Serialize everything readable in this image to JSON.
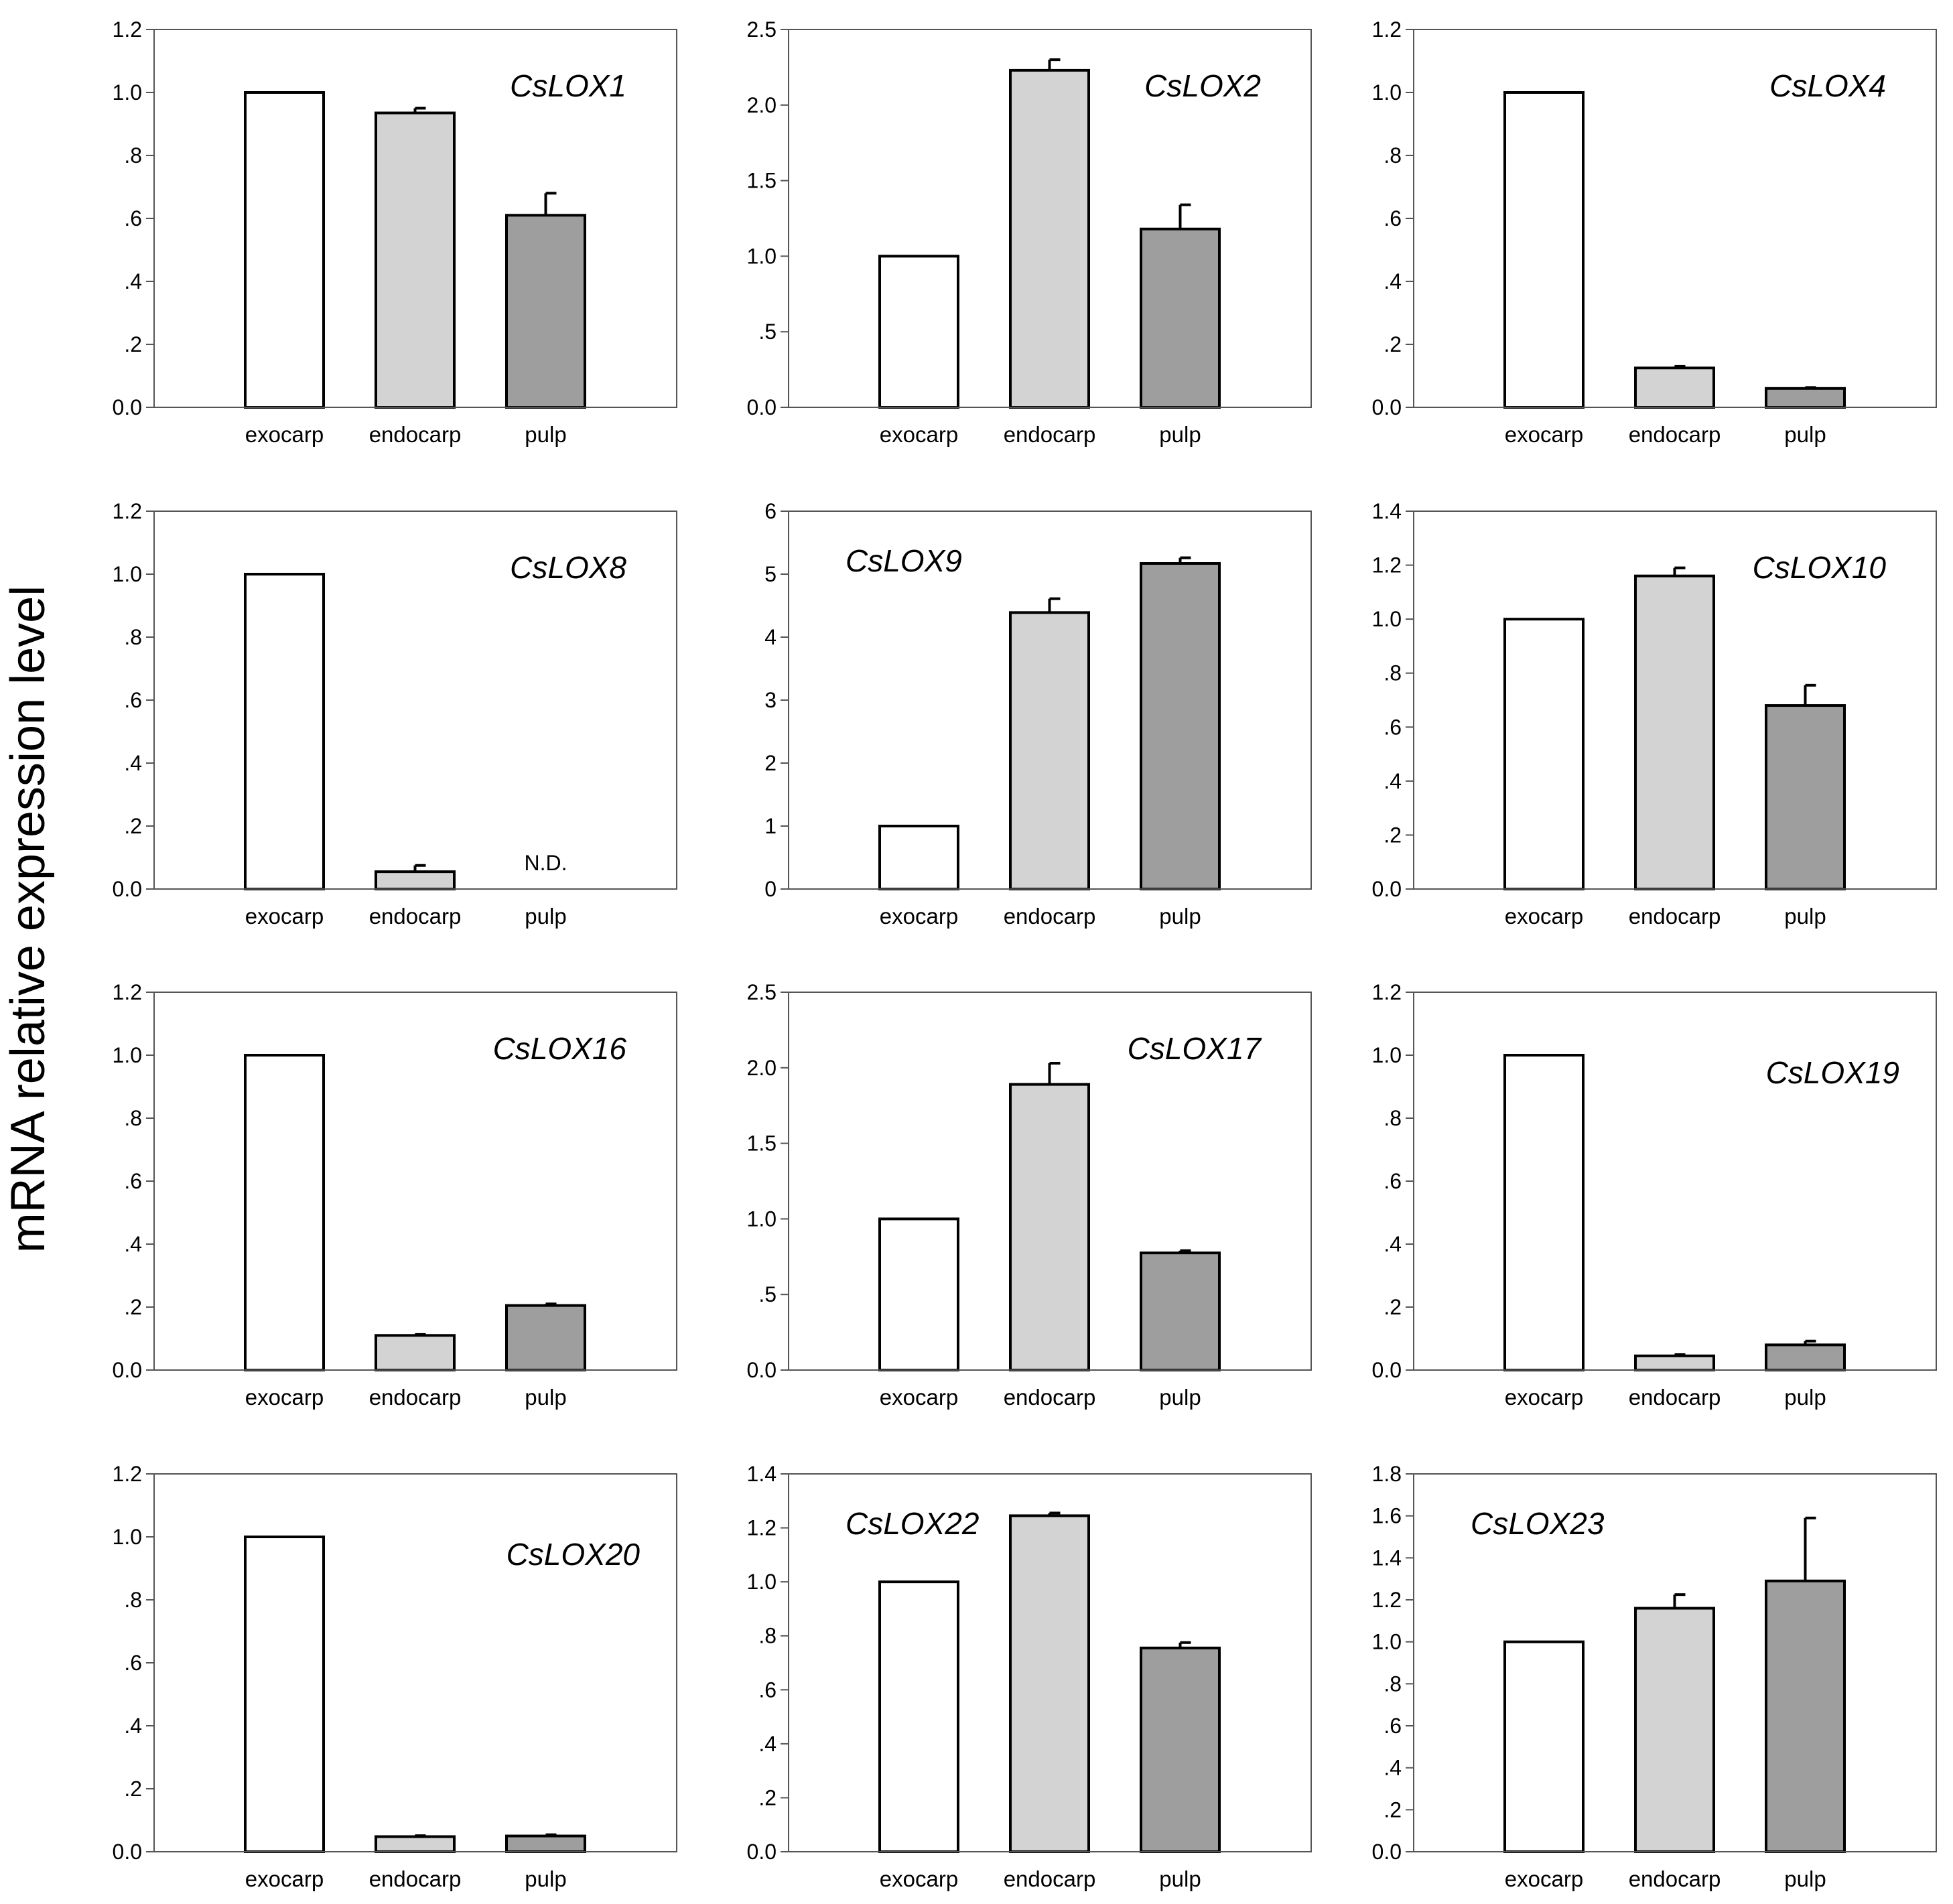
{
  "figure": {
    "ylabel": "mRNA relative expression level",
    "categories": [
      "exocarp",
      "endocarp",
      "pulp"
    ],
    "colors": {
      "exocarp": "#ffffff",
      "endocarp": "#d3d3d3",
      "pulp": "#9e9e9e",
      "stroke": "#000000"
    }
  },
  "chart_data": [
    {
      "type": "bar",
      "title": "CsLOX1",
      "categories": [
        "exocarp",
        "endocarp",
        "pulp"
      ],
      "values": [
        1.0,
        0.935,
        0.61
      ],
      "errors": [
        0,
        0.015,
        0.07
      ],
      "ylim": [
        0,
        1.2
      ],
      "yticks": [
        0,
        0.2,
        0.4,
        0.6,
        0.8,
        1.0,
        1.2
      ],
      "ytick_labels": [
        "0.0",
        ".2",
        ".4",
        ".6",
        ".8",
        "1.0",
        "1.2"
      ],
      "title_position": "top-right",
      "nd": [
        false,
        false,
        false
      ]
    },
    {
      "type": "bar",
      "title": "CsLOX2",
      "categories": [
        "exocarp",
        "endocarp",
        "pulp"
      ],
      "values": [
        1.0,
        2.23,
        1.18
      ],
      "errors": [
        0,
        0.07,
        0.16
      ],
      "ylim": [
        0,
        2.5
      ],
      "yticks": [
        0,
        0.5,
        1.0,
        1.5,
        2.0,
        2.5
      ],
      "ytick_labels": [
        "0.0",
        ".5",
        "1.0",
        "1.5",
        "2.0",
        "2.5"
      ],
      "title_position": "top-right",
      "nd": [
        false,
        false,
        false
      ]
    },
    {
      "type": "bar",
      "title": "CsLOX4",
      "categories": [
        "exocarp",
        "endocarp",
        "pulp"
      ],
      "values": [
        1.0,
        0.125,
        0.06
      ],
      "errors": [
        0,
        0.005,
        0.003
      ],
      "ylim": [
        0,
        1.2
      ],
      "yticks": [
        0,
        0.2,
        0.4,
        0.6,
        0.8,
        1.0,
        1.2
      ],
      "ytick_labels": [
        "0.0",
        ".2",
        ".4",
        ".6",
        ".8",
        "1.0",
        "1.2"
      ],
      "title_position": "top-right",
      "nd": [
        false,
        false,
        false
      ]
    },
    {
      "type": "bar",
      "title": "CsLOX8",
      "categories": [
        "exocarp",
        "endocarp",
        "pulp"
      ],
      "values": [
        1.0,
        0.055,
        0
      ],
      "errors": [
        0,
        0.02,
        0
      ],
      "ylim": [
        0,
        1.2
      ],
      "yticks": [
        0,
        0.2,
        0.4,
        0.6,
        0.8,
        1.0,
        1.2
      ],
      "ytick_labels": [
        "0.0",
        ".2",
        ".4",
        ".6",
        ".8",
        "1.0",
        "1.2"
      ],
      "title_position": "top-right",
      "nd": [
        false,
        false,
        true
      ],
      "annotation": "N.D."
    },
    {
      "type": "bar",
      "title": "CsLOX9",
      "categories": [
        "exocarp",
        "endocarp",
        "pulp"
      ],
      "values": [
        1.0,
        4.39,
        5.17
      ],
      "errors": [
        0,
        0.22,
        0.09
      ],
      "ylim": [
        0,
        6
      ],
      "yticks": [
        0,
        1,
        2,
        3,
        4,
        5,
        6
      ],
      "ytick_labels": [
        "0",
        "1",
        "2",
        "3",
        "4",
        "5",
        "6"
      ],
      "title_position": "top-left",
      "nd": [
        false,
        false,
        false
      ]
    },
    {
      "type": "bar",
      "title": "CsLOX10",
      "categories": [
        "exocarp",
        "endocarp",
        "pulp"
      ],
      "values": [
        1.0,
        1.16,
        0.68
      ],
      "errors": [
        0,
        0.03,
        0.075
      ],
      "ylim": [
        0,
        1.4
      ],
      "yticks": [
        0,
        0.2,
        0.4,
        0.6,
        0.8,
        1.0,
        1.2,
        1.4
      ],
      "ytick_labels": [
        "0.0",
        ".2",
        ".4",
        ".6",
        ".8",
        "1.0",
        "1.2",
        "1.4"
      ],
      "title_position": "top-right",
      "nd": [
        false,
        false,
        false
      ]
    },
    {
      "type": "bar",
      "title": "CsLOX16",
      "categories": [
        "exocarp",
        "endocarp",
        "pulp"
      ],
      "values": [
        1.0,
        0.11,
        0.205
      ],
      "errors": [
        0,
        0.003,
        0.005
      ],
      "ylim": [
        0,
        1.2
      ],
      "yticks": [
        0,
        0.2,
        0.4,
        0.6,
        0.8,
        1.0,
        1.2
      ],
      "ytick_labels": [
        "0.0",
        ".2",
        ".4",
        ".6",
        ".8",
        "1.0",
        "1.2"
      ],
      "title_position": "top-right",
      "nd": [
        false,
        false,
        false
      ]
    },
    {
      "type": "bar",
      "title": "CsLOX17",
      "categories": [
        "exocarp",
        "endocarp",
        "pulp"
      ],
      "values": [
        1.0,
        1.89,
        0.775
      ],
      "errors": [
        0,
        0.14,
        0.015
      ],
      "ylim": [
        0,
        2.5
      ],
      "yticks": [
        0,
        0.5,
        1.0,
        1.5,
        2.0,
        2.5
      ],
      "ytick_labels": [
        "0.0",
        ".5",
        "1.0",
        "1.5",
        "2.0",
        "2.5"
      ],
      "title_position": "top-right",
      "nd": [
        false,
        false,
        false
      ]
    },
    {
      "type": "bar",
      "title": "CsLOX19",
      "categories": [
        "exocarp",
        "endocarp",
        "pulp"
      ],
      "values": [
        1.0,
        0.045,
        0.08
      ],
      "errors": [
        0,
        0.004,
        0.012
      ],
      "ylim": [
        0,
        1.2
      ],
      "yticks": [
        0,
        0.2,
        0.4,
        0.6,
        0.8,
        1.0,
        1.2
      ],
      "ytick_labels": [
        "0.0",
        ".2",
        ".4",
        ".6",
        ".8",
        "1.0",
        "1.2"
      ],
      "title_position": "right-upper",
      "nd": [
        false,
        false,
        false
      ]
    },
    {
      "type": "bar",
      "title": "CsLOX20",
      "categories": [
        "exocarp",
        "endocarp",
        "pulp"
      ],
      "values": [
        1.0,
        0.048,
        0.05
      ],
      "errors": [
        0,
        0.003,
        0.004
      ],
      "ylim": [
        0,
        1.2
      ],
      "yticks": [
        0,
        0.2,
        0.4,
        0.6,
        0.8,
        1.0,
        1.2
      ],
      "ytick_labels": [
        "0.0",
        ".2",
        ".4",
        ".6",
        ".8",
        "1.0",
        "1.2"
      ],
      "title_position": "right-upper",
      "nd": [
        false,
        false,
        false
      ]
    },
    {
      "type": "bar",
      "title": "CsLOX22",
      "categories": [
        "exocarp",
        "endocarp",
        "pulp"
      ],
      "values": [
        1.0,
        1.245,
        0.755
      ],
      "errors": [
        0,
        0.01,
        0.02
      ],
      "ylim": [
        0,
        1.4
      ],
      "yticks": [
        0,
        0.2,
        0.4,
        0.6,
        0.8,
        1.0,
        1.2,
        1.4
      ],
      "ytick_labels": [
        "0.0",
        ".2",
        ".4",
        ".6",
        ".8",
        "1.0",
        "1.2",
        "1.4"
      ],
      "title_position": "top-left",
      "nd": [
        false,
        false,
        false
      ]
    },
    {
      "type": "bar",
      "title": "CsLOX23",
      "categories": [
        "exocarp",
        "endocarp",
        "pulp"
      ],
      "values": [
        1.0,
        1.16,
        1.29
      ],
      "errors": [
        0,
        0.065,
        0.3
      ],
      "ylim": [
        0,
        1.8
      ],
      "yticks": [
        0,
        0.2,
        0.4,
        0.6,
        0.8,
        1.0,
        1.2,
        1.4,
        1.6,
        1.8
      ],
      "ytick_labels": [
        "0.0",
        ".2",
        ".4",
        ".6",
        ".8",
        "1.0",
        "1.2",
        "1.4",
        "1.6",
        "1.8"
      ],
      "title_position": "top-left",
      "nd": [
        false,
        false,
        false
      ]
    }
  ]
}
